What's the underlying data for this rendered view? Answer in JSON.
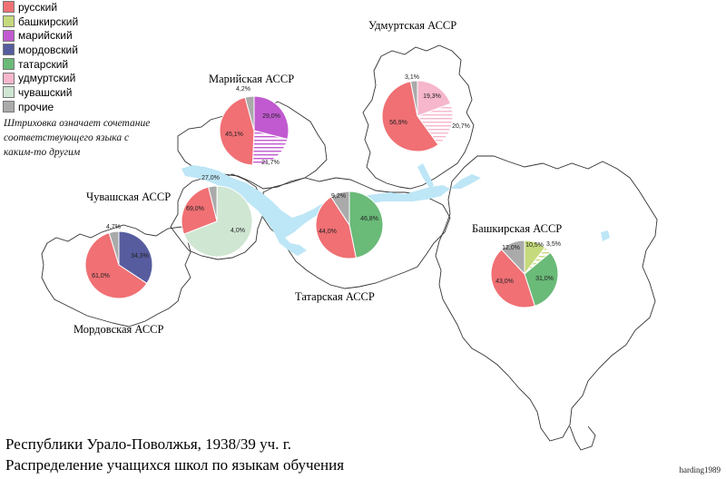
{
  "legend": [
    {
      "label": "русский",
      "color": "#f07074",
      "hatch": false
    },
    {
      "label": "башкирский",
      "color": "#c5da7c",
      "hatch": false
    },
    {
      "label": "марийский",
      "color": "#c15ad0",
      "hatch": false
    },
    {
      "label": "мордовский",
      "color": "#565c9e",
      "hatch": false
    },
    {
      "label": "татарский",
      "color": "#6aba78",
      "hatch": false
    },
    {
      "label": "удмуртский",
      "color": "#f6b6cc",
      "hatch": false
    },
    {
      "label": "чувашский",
      "color": "#cfe6d2",
      "hatch": false
    },
    {
      "label": "прочие",
      "color": "#aaaaaa",
      "hatch": false
    }
  ],
  "note": "Штриховка означает сочетание соответствующего языка с каким-то другим",
  "caption": {
    "line1": "Республики Урало-Поволжья, 1938/39 уч. г.",
    "line2": "Распределение учащихся школ по языкам обучения"
  },
  "author": "harding1989",
  "chart_data": [
    {
      "type": "pie",
      "title": "Мордовская АССР",
      "slices": [
        {
          "language": "мордовский",
          "value": 34.3,
          "label": "34,3%",
          "color": "#565c9e"
        },
        {
          "language": "русский",
          "value": 61.0,
          "label": "61,0%",
          "color": "#f07074"
        },
        {
          "language": "прочие",
          "value": 4.7,
          "label": "4,7%",
          "color": "#aaaaaa"
        }
      ]
    },
    {
      "type": "pie",
      "title": "Чувашская АССР",
      "slices": [
        {
          "language": "прочие",
          "value": 4.0,
          "label": "4,0%",
          "color": "#aaaaaa"
        },
        {
          "language": "чувашский",
          "value": 69.0,
          "label": "69,0%",
          "color": "#cfe6d2"
        },
        {
          "language": "русский",
          "value": 27.0,
          "label": "27,0%",
          "color": "#f07074"
        }
      ]
    },
    {
      "type": "pie",
      "title": "Марийская АССР",
      "slices": [
        {
          "language": "марийский",
          "value": 29.0,
          "label": "29,0%",
          "color": "#c15ad0"
        },
        {
          "language": "марийский (в сочетании)",
          "value": 21.7,
          "label": "21,7%",
          "color": "#c15ad0",
          "hatch": true
        },
        {
          "language": "русский",
          "value": 45.1,
          "label": "45,1%",
          "color": "#f07074"
        },
        {
          "language": "прочие",
          "value": 4.2,
          "label": "4,2%",
          "color": "#aaaaaa"
        }
      ]
    },
    {
      "type": "pie",
      "title": "Татарская АССР",
      "slices": [
        {
          "language": "татарский",
          "value": 46.8,
          "label": "46,8%",
          "color": "#6aba78"
        },
        {
          "language": "русский",
          "value": 44.0,
          "label": "44,0%",
          "color": "#f07074"
        },
        {
          "language": "прочие",
          "value": 9.2,
          "label": "9,2%",
          "color": "#aaaaaa"
        }
      ]
    },
    {
      "type": "pie",
      "title": "Удмуртская АССР",
      "slices": [
        {
          "language": "удмуртский",
          "value": 19.3,
          "label": "19,3%",
          "color": "#f6b6cc"
        },
        {
          "language": "удмуртский (в сочетании)",
          "value": 20.7,
          "label": "20,7%",
          "color": "#f6b6cc",
          "hatch": true
        },
        {
          "language": "русский",
          "value": 56.9,
          "label": "56,9%",
          "color": "#f07074"
        },
        {
          "language": "прочие",
          "value": 3.1,
          "label": "3,1%",
          "color": "#aaaaaa"
        }
      ]
    },
    {
      "type": "pie",
      "title": "Башкирская АССР",
      "slices": [
        {
          "language": "башкирский",
          "value": 10.5,
          "label": "10,5%",
          "color": "#c5da7c"
        },
        {
          "language": "башкирский (в сочетании)",
          "value": 3.5,
          "label": "3,5%",
          "color": "#c5da7c",
          "hatch": true
        },
        {
          "language": "татарский",
          "value": 31.0,
          "label": "31,0%",
          "color": "#6aba78"
        },
        {
          "language": "русский",
          "value": 43.0,
          "label": "43,0%",
          "color": "#f07074"
        },
        {
          "language": "прочие",
          "value": 12.0,
          "label": "12,0%",
          "color": "#aaaaaa"
        }
      ]
    }
  ]
}
